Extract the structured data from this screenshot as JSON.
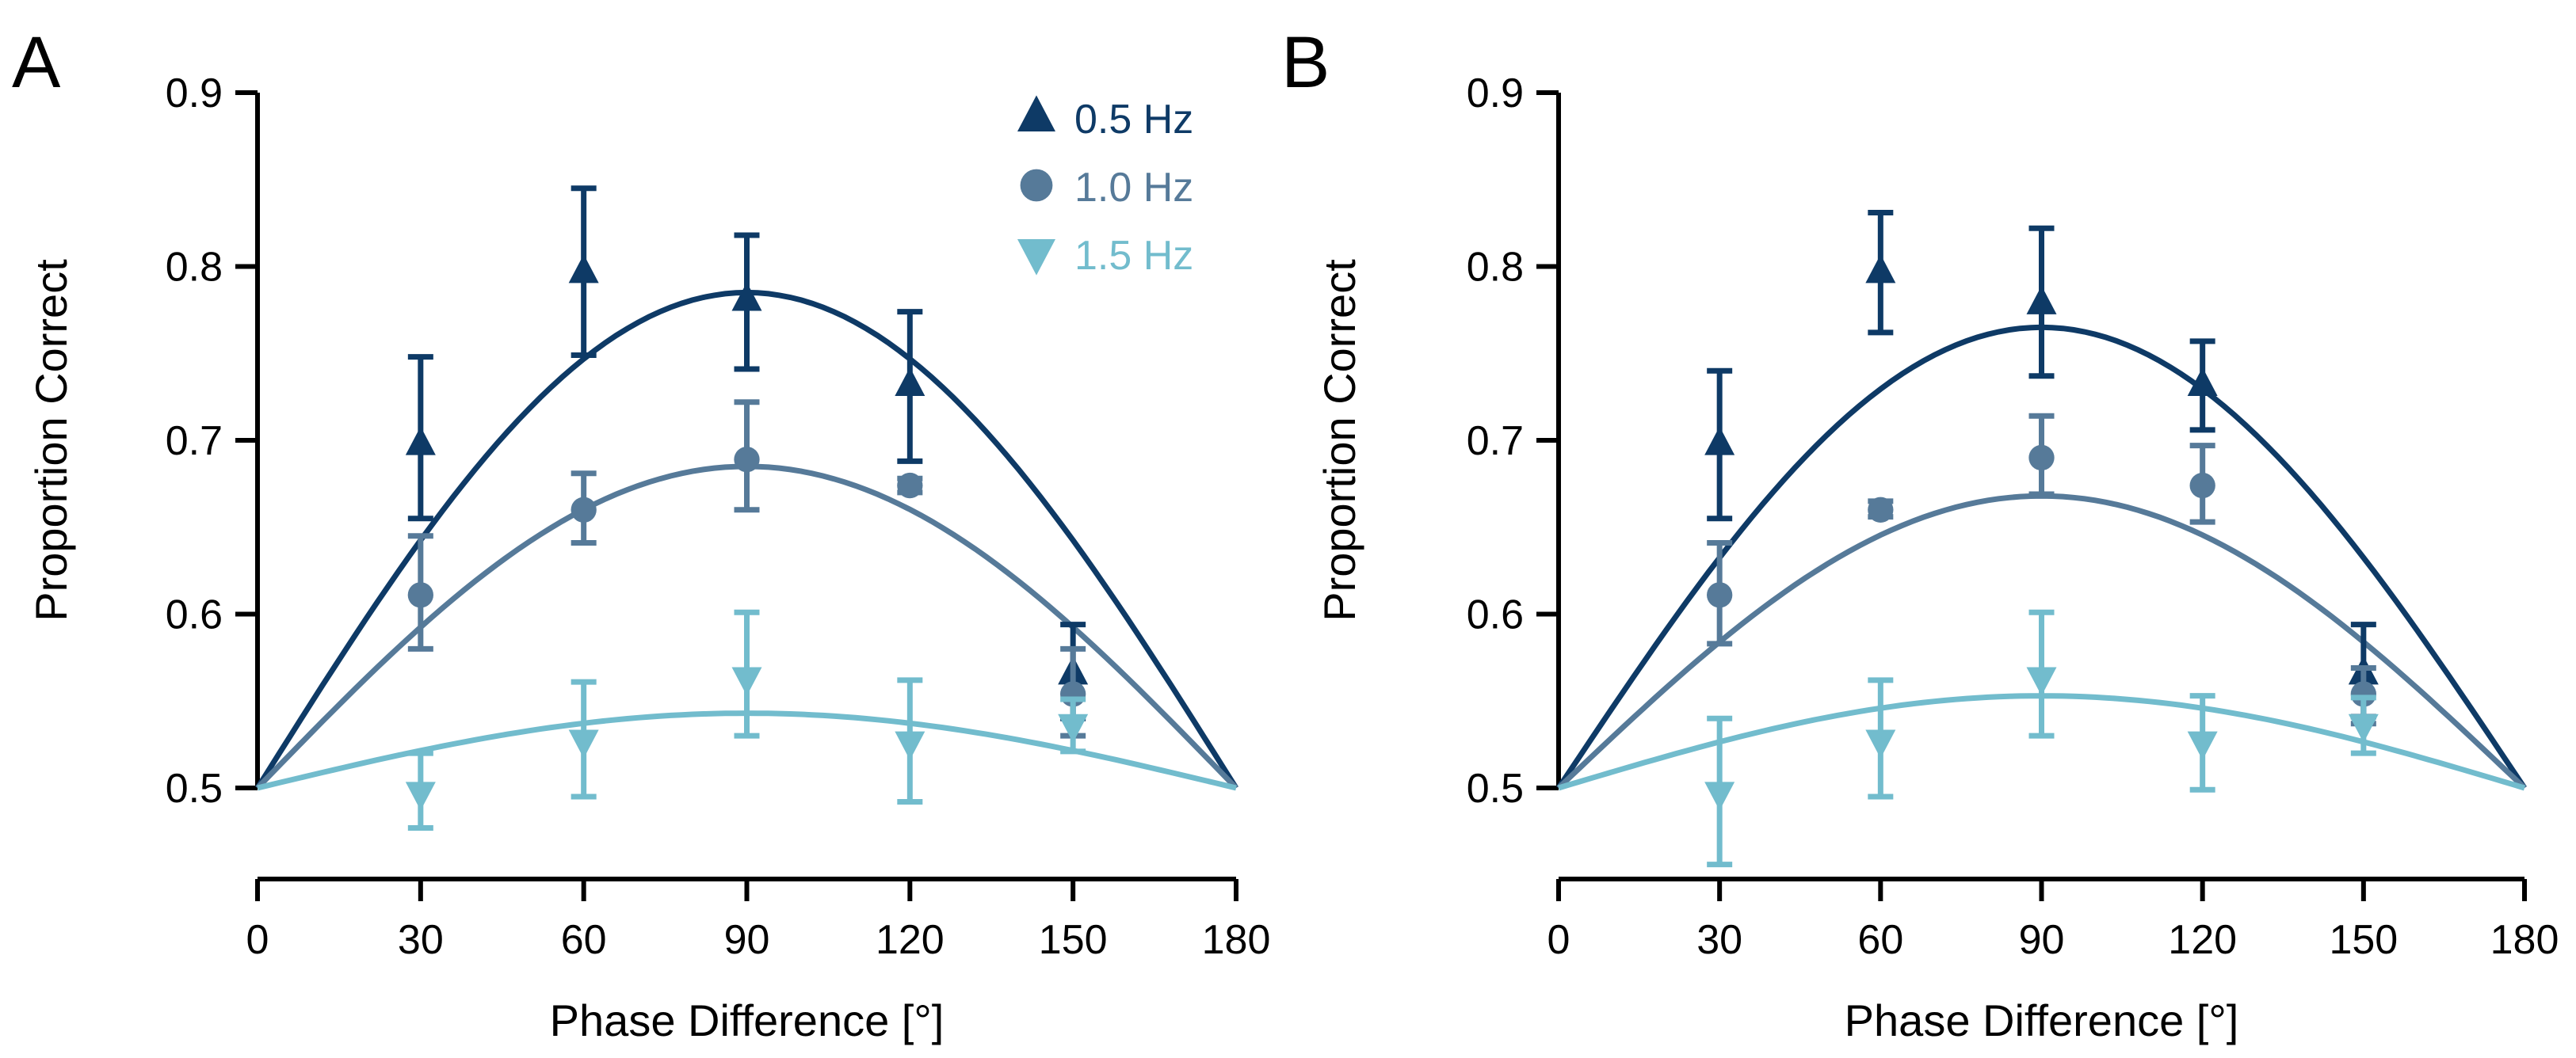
{
  "figure": {
    "series_colors": {
      "0.5 Hz": "#0e3a66",
      "1.0 Hz": "#567a99",
      "1.5 Hz": "#72bccd"
    },
    "axis_color": "#000000"
  },
  "chart_data": [
    {
      "panel_label": "A",
      "type": "scatter",
      "xlabel": "Phase Difference [°]",
      "ylabel": "Proportion Correct",
      "xlim": [
        0,
        180
      ],
      "ylim": [
        0.5,
        0.9
      ],
      "xticks": [
        0,
        30,
        60,
        90,
        120,
        150,
        180
      ],
      "yticks": [
        0.5,
        0.6,
        0.7,
        0.8,
        0.9
      ],
      "xtick_labels": [
        "0",
        "30",
        "60",
        "90",
        "120",
        "150",
        "180"
      ],
      "ytick_labels": [
        "0.5",
        "0.6",
        "0.7",
        "0.8",
        "0.9"
      ],
      "legend": {
        "position": "top-right",
        "entries": [
          "0.5 Hz",
          "1.0 Hz",
          "1.5 Hz"
        ]
      },
      "series": [
        {
          "name": "0.5 Hz",
          "marker": "triangle-up",
          "color": "#0e3a66",
          "x": [
            30,
            60,
            90,
            120,
            150
          ],
          "y": [
            0.698,
            0.797,
            0.781,
            0.732,
            0.566
          ],
          "err_low": [
            0.655,
            0.749,
            0.741,
            0.688,
            0.54
          ],
          "err_high": [
            0.748,
            0.845,
            0.818,
            0.774,
            0.594
          ],
          "fit": {
            "kind": "sine",
            "peak": 0.785
          }
        },
        {
          "name": "1.0 Hz",
          "marker": "circle",
          "color": "#567a99",
          "x": [
            30,
            60,
            90,
            120,
            150
          ],
          "y": [
            0.611,
            0.66,
            0.689,
            0.674,
            0.554
          ],
          "err_low": [
            0.58,
            0.641,
            0.66,
            0.67,
            0.53
          ],
          "err_high": [
            0.645,
            0.681,
            0.722,
            0.678,
            0.58
          ],
          "fit": {
            "kind": "sine",
            "peak": 0.685
          }
        },
        {
          "name": "1.5 Hz",
          "marker": "triangle-down",
          "color": "#72bccd",
          "x": [
            30,
            60,
            90,
            120,
            150
          ],
          "y": [
            0.497,
            0.527,
            0.563,
            0.526,
            0.536
          ],
          "err_low": [
            0.477,
            0.495,
            0.53,
            0.492,
            0.521
          ],
          "err_high": [
            0.52,
            0.561,
            0.601,
            0.562,
            0.551
          ],
          "fit": {
            "kind": "sine",
            "peak": 0.543
          }
        }
      ]
    },
    {
      "panel_label": "B",
      "type": "scatter",
      "xlabel": "Phase Difference [°]",
      "ylabel": "Proportion Correct",
      "xlim": [
        0,
        180
      ],
      "ylim": [
        0.5,
        0.9
      ],
      "xticks": [
        0,
        30,
        60,
        90,
        120,
        150,
        180
      ],
      "yticks": [
        0.5,
        0.6,
        0.7,
        0.8,
        0.9
      ],
      "xtick_labels": [
        "0",
        "30",
        "60",
        "90",
        "120",
        "150",
        "180"
      ],
      "ytick_labels": [
        "0.5",
        "0.6",
        "0.7",
        "0.8",
        "0.9"
      ],
      "legend": null,
      "series": [
        {
          "name": "0.5 Hz",
          "marker": "triangle-up",
          "color": "#0e3a66",
          "x": [
            30,
            60,
            90,
            120,
            150
          ],
          "y": [
            0.698,
            0.797,
            0.779,
            0.732,
            0.566
          ],
          "err_low": [
            0.655,
            0.762,
            0.737,
            0.706,
            0.541
          ],
          "err_high": [
            0.74,
            0.831,
            0.822,
            0.757,
            0.594
          ],
          "fit": {
            "kind": "sine",
            "peak": 0.765
          }
        },
        {
          "name": "1.0 Hz",
          "marker": "circle",
          "color": "#567a99",
          "x": [
            30,
            60,
            90,
            120,
            150
          ],
          "y": [
            0.611,
            0.66,
            0.69,
            0.674,
            0.554
          ],
          "err_low": [
            0.583,
            0.656,
            0.669,
            0.653,
            0.537
          ],
          "err_high": [
            0.641,
            0.665,
            0.714,
            0.697,
            0.569
          ],
          "fit": {
            "kind": "sine",
            "peak": 0.668
          }
        },
        {
          "name": "1.5 Hz",
          "marker": "triangle-down",
          "color": "#72bccd",
          "x": [
            30,
            60,
            90,
            120,
            150
          ],
          "y": [
            0.497,
            0.527,
            0.563,
            0.526,
            0.536
          ],
          "err_low": [
            0.456,
            0.495,
            0.53,
            0.499,
            0.52
          ],
          "err_high": [
            0.54,
            0.562,
            0.601,
            0.553,
            0.552
          ],
          "fit": {
            "kind": "sine",
            "peak": 0.553
          }
        }
      ]
    }
  ]
}
